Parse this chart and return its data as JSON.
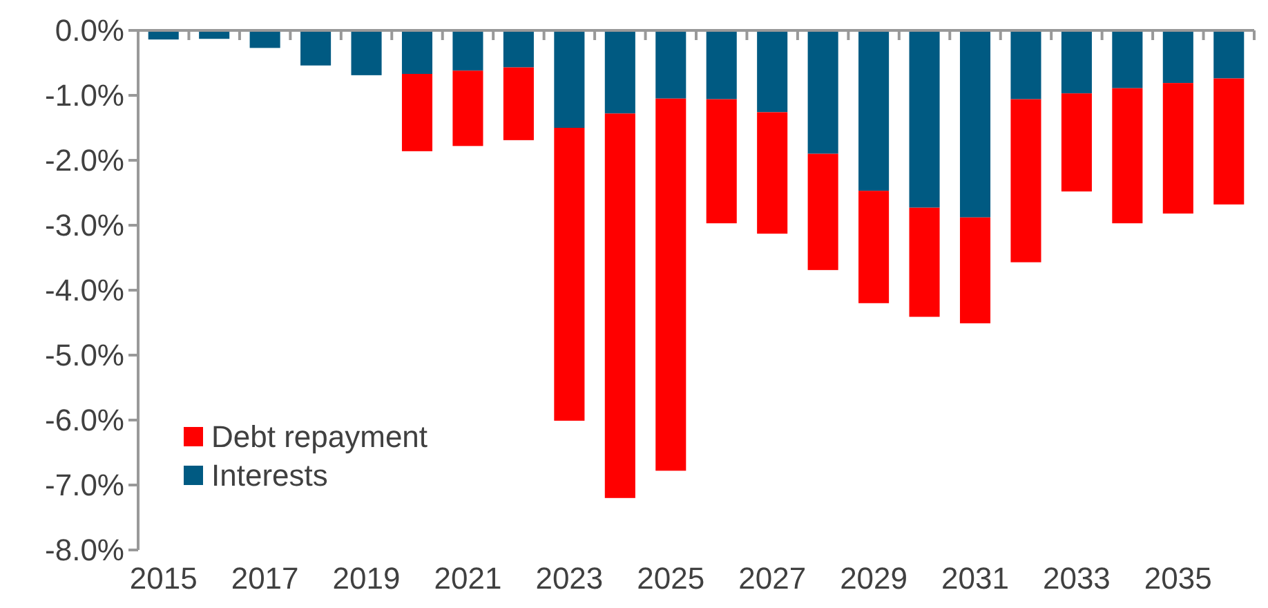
{
  "chart_data": {
    "type": "bar",
    "stacked": true,
    "categories": [
      "2015",
      null,
      "2017",
      null,
      "2019",
      null,
      "2021",
      null,
      "2023",
      null,
      "2025",
      null,
      "2027",
      null,
      "2029",
      null,
      "2031",
      null,
      "2033",
      null,
      "2035",
      null
    ],
    "series": [
      {
        "name": "Interests",
        "color": "#005a82",
        "values": [
          -0.14,
          -0.13,
          -0.27,
          -0.54,
          -0.69,
          -0.67,
          -0.62,
          -0.57,
          -1.5,
          -1.28,
          -1.05,
          -1.06,
          -1.26,
          -1.9,
          -2.47,
          -2.73,
          -2.88,
          -1.06,
          -0.97,
          -0.89,
          -0.81,
          -0.74
        ]
      },
      {
        "name": "Debt repayment",
        "color": "#ff0000",
        "values": [
          0,
          0,
          0,
          0,
          0,
          -1.19,
          -1.16,
          -1.12,
          -4.51,
          -5.92,
          -5.73,
          -1.91,
          -1.87,
          -1.79,
          -1.73,
          -1.68,
          -1.63,
          -2.51,
          -1.51,
          -2.08,
          -2.01,
          -1.94
        ]
      }
    ],
    "ylim": [
      -8,
      0
    ],
    "yticks": [
      {
        "value": 0,
        "label": "0.0%"
      },
      {
        "value": -1,
        "label": "-1.0%"
      },
      {
        "value": -2,
        "label": "-2.0%"
      },
      {
        "value": -3,
        "label": "-3.0%"
      },
      {
        "value": -4,
        "label": "-4.0%"
      },
      {
        "value": -5,
        "label": "-5.0%"
      },
      {
        "value": -6,
        "label": "-6.0%"
      },
      {
        "value": -7,
        "label": "-7.0%"
      },
      {
        "value": -8,
        "label": "-8.0%"
      }
    ],
    "grid": false,
    "legend": "bottom left"
  }
}
